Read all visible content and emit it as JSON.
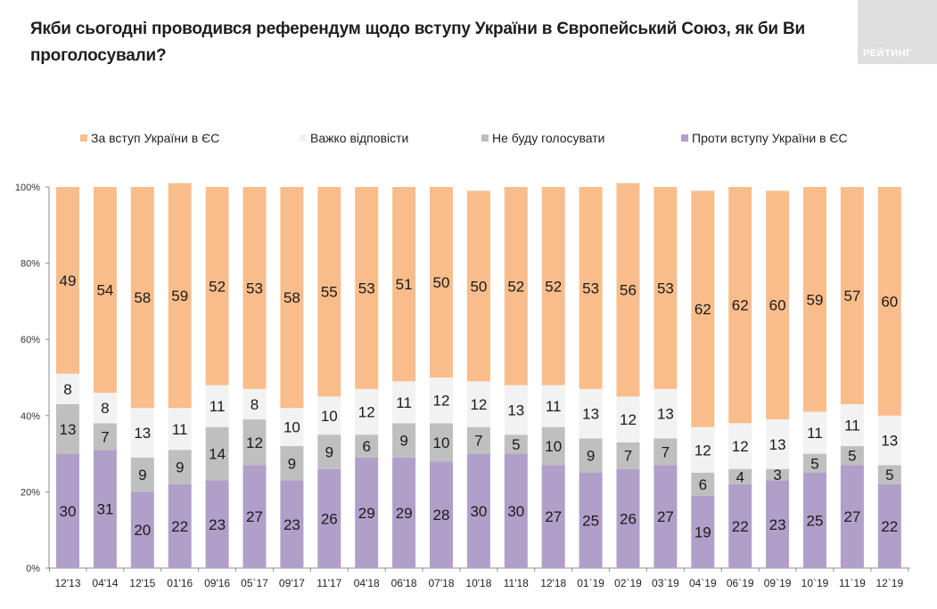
{
  "header": {
    "title": "Якби сьогодні проводився референдум щодо вступу України в Європейський Союз, як би Ви проголосували?",
    "logo_text": "РЕЙТИНГ"
  },
  "chart_data": {
    "type": "bar",
    "stacked": true,
    "percent_stacked": true,
    "title": "Якби сьогодні проводився референдум щодо вступу України в Європейський Союз, як би Ви проголосували?",
    "xlabel": "",
    "ylabel": "",
    "ylim": [
      0,
      100
    ],
    "yticks": [
      "0%",
      "20%",
      "40%",
      "60%",
      "80%",
      "100%"
    ],
    "legend_position": "top",
    "grid": false,
    "categories": [
      "12'13",
      "04'14",
      "12'15",
      "01'16",
      "09'16",
      "05`17",
      "09'17",
      "11'17",
      "04'18",
      "06'18",
      "07'18",
      "10'18",
      "11'18",
      "12'18",
      "01`19",
      "02`19",
      "03`19",
      "04`19",
      "06`19",
      "09`19",
      "10`19",
      "11`19",
      "12`19"
    ],
    "series": [
      {
        "name": "Проти вступу України в ЄС",
        "color": "#b09fc9",
        "values": [
          30,
          31,
          20,
          22,
          23,
          27,
          23,
          26,
          29,
          29,
          28,
          30,
          30,
          27,
          25,
          26,
          27,
          19,
          22,
          23,
          25,
          27,
          22
        ]
      },
      {
        "name": "Не буду голосувати",
        "color": "#bfbfbf",
        "values": [
          13,
          7,
          9,
          9,
          14,
          12,
          9,
          9,
          6,
          9,
          10,
          7,
          5,
          10,
          9,
          7,
          7,
          6,
          4,
          3,
          5,
          5,
          5
        ]
      },
      {
        "name": "Важко відповісти",
        "color": "#f2f2f2",
        "values": [
          8,
          8,
          13,
          11,
          11,
          8,
          10,
          10,
          12,
          11,
          12,
          12,
          13,
          11,
          13,
          12,
          13,
          12,
          12,
          13,
          11,
          11,
          13
        ]
      },
      {
        "name": "За вступ України в ЄС",
        "color": "#f9bd8b",
        "values": [
          49,
          54,
          58,
          59,
          52,
          53,
          58,
          55,
          53,
          51,
          50,
          50,
          52,
          52,
          53,
          56,
          53,
          62,
          62,
          60,
          59,
          57,
          60
        ]
      }
    ],
    "legend_order": [
      "За вступ України в ЄС",
      "Важко відповісти",
      "Не буду голосувати",
      "Проти вступу України в ЄС"
    ]
  }
}
